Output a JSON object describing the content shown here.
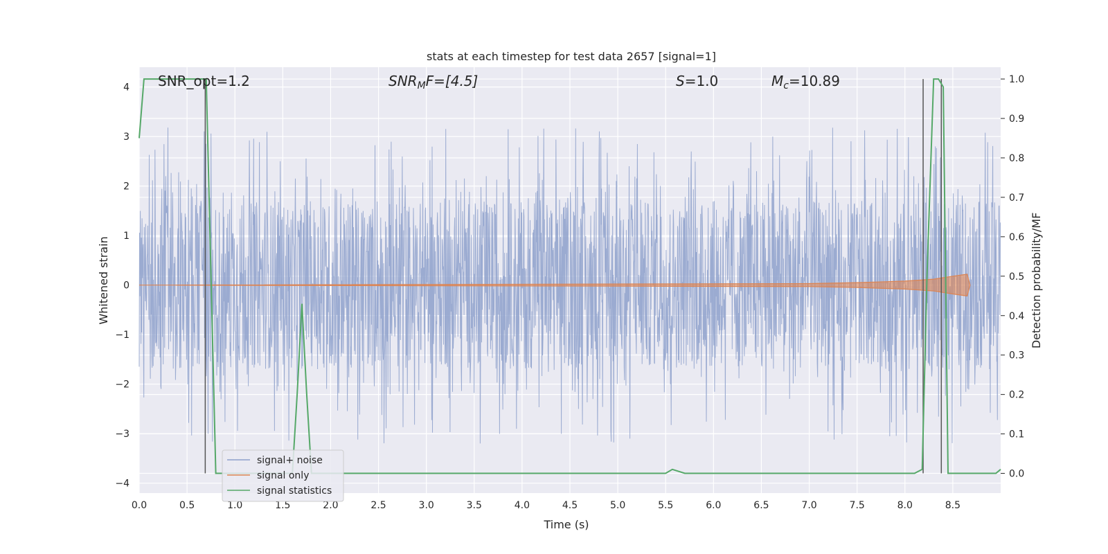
{
  "chart_data": {
    "type": "line",
    "title": "stats at each timestep for test data 2657 [signal=1]",
    "xlabel": "Time (s)",
    "ylabel_left": "Whitened strain",
    "ylabel_right": "Detection probability/MF",
    "xlim": [
      0.0,
      9.0
    ],
    "ylim_left": [
      -4.2,
      4.4
    ],
    "ylim_right": [
      -0.05,
      1.03
    ],
    "x_ticks": [
      "0.0",
      "0.5",
      "1.0",
      "1.5",
      "2.0",
      "2.5",
      "3.0",
      "3.5",
      "4.0",
      "4.5",
      "5.0",
      "5.5",
      "6.0",
      "6.5",
      "7.0",
      "7.5",
      "8.0",
      "8.5"
    ],
    "y_left_ticks": [
      "4",
      "3",
      "2",
      "1",
      "0",
      "−1",
      "−2",
      "−3",
      "−4"
    ],
    "y_right_ticks": [
      "1.0",
      "0.9",
      "0.8",
      "0.7",
      "0.6",
      "0.5",
      "0.4",
      "0.3",
      "0.2",
      "0.1",
      "0.0"
    ],
    "grid": true,
    "legend_position": "lower-left",
    "annotations": {
      "snr_opt": "SNR_opt=1.2",
      "snr_mf_sym": "SNR",
      "snr_mf_sub": "M",
      "snr_mf_rest": "F=[4.5]",
      "s_sym": "S",
      "s_rest": "=1.0",
      "mc_sym": "M",
      "mc_sub": "c",
      "mc_rest": "=10.89"
    },
    "series": [
      {
        "name": "signal+ noise",
        "color": "#8da0cb",
        "description_values": "noise band approx -1.7..1.7 with spikes up to about 3.4 / down to about -3.7"
      },
      {
        "name": "signal only",
        "color": "#dd8452",
        "x": [
          0.0,
          7.0,
          7.5,
          8.0,
          8.3,
          8.5,
          8.65,
          8.68
        ],
        "amplitude": [
          0.0,
          0.03,
          0.05,
          0.08,
          0.12,
          0.18,
          0.22,
          0.0
        ]
      },
      {
        "name": "signal statistics",
        "color": "#55a868",
        "x": [
          0.0,
          0.05,
          0.1,
          0.6,
          0.7,
          0.75,
          0.8,
          1.6,
          1.65,
          1.7,
          1.75,
          1.8,
          5.5,
          5.57,
          5.7,
          8.1,
          8.18,
          8.23,
          8.3,
          8.35,
          8.4,
          8.45,
          8.5,
          8.95,
          9.0
        ],
        "y": [
          0.85,
          1.0,
          1.0,
          1.0,
          1.0,
          0.5,
          0.0,
          0.0,
          0.2,
          0.43,
          0.2,
          0.0,
          0.0,
          0.01,
          0.0,
          0.0,
          0.01,
          0.5,
          1.0,
          1.0,
          0.98,
          0.0,
          0.0,
          0.0,
          0.01
        ]
      }
    ],
    "vertical_markers": [
      0.69,
      8.19,
      8.38
    ]
  }
}
